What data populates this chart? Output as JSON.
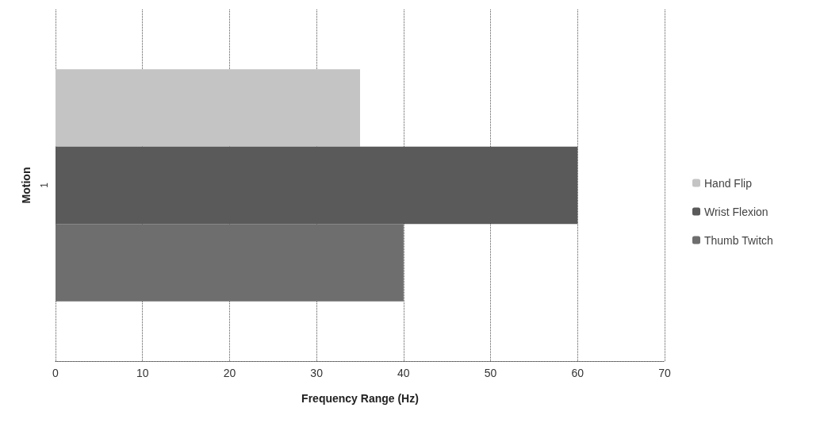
{
  "chart_data": {
    "type": "bar",
    "orientation": "horizontal",
    "xlabel": "Frequency Range (Hz)",
    "ylabel": "Motion",
    "categories": [
      "1"
    ],
    "series": [
      {
        "name": "Hand Flip",
        "color": "#c4c4c4",
        "values": [
          35
        ]
      },
      {
        "name": "Wrist Flexion",
        "color": "#5a5a5a",
        "values": [
          60
        ]
      },
      {
        "name": "Thumb Twitch",
        "color": "#6e6e6e",
        "values": [
          40
        ]
      }
    ],
    "xlim": [
      0,
      70
    ],
    "xticks": [
      0,
      10,
      20,
      30,
      40,
      50,
      60,
      70
    ],
    "grid": "x",
    "legend": "right"
  }
}
